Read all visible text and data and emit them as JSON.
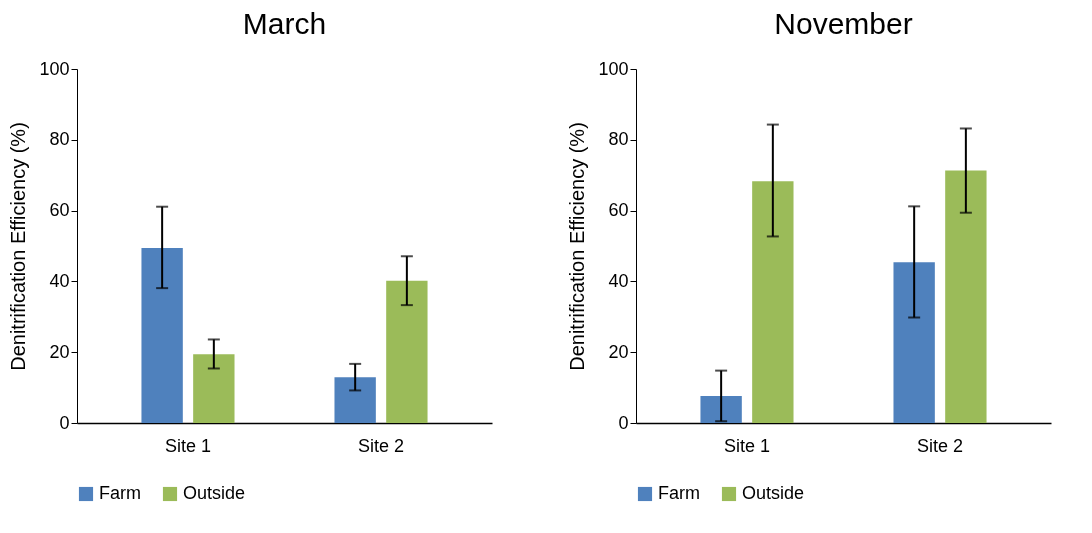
{
  "chart_data": [
    {
      "type": "bar",
      "title": "March",
      "ylabel": "Denitrification Efficiency (%)",
      "categories": [
        "Site 1",
        "Site 2"
      ],
      "series": [
        {
          "name": "Farm",
          "color": "#4f81bd",
          "values": [
            49.4,
            12.9
          ],
          "errors": [
            [
              38.1,
              61.1
            ],
            [
              9.2,
              16.7
            ]
          ]
        },
        {
          "name": "Outside",
          "color": "#9bbb59",
          "values": [
            19.4,
            40.2
          ],
          "errors": [
            [
              15.4,
              23.6
            ],
            [
              33.3,
              47.1
            ]
          ]
        }
      ],
      "ylim": [
        0,
        100
      ],
      "yticks": [
        0,
        20,
        40,
        60,
        80,
        100
      ],
      "grid": false,
      "legend": "bottom"
    },
    {
      "type": "bar",
      "title": "November",
      "ylabel": "Denitrification Efficiency (%)",
      "categories": [
        "Site 1",
        "Site 2"
      ],
      "series": [
        {
          "name": "Farm",
          "color": "#4f81bd",
          "values": [
            7.6,
            45.4
          ],
          "errors": [
            [
              0.5,
              14.8
            ],
            [
              29.8,
              61.2
            ]
          ]
        },
        {
          "name": "Outside",
          "color": "#9bbb59",
          "values": [
            68.3,
            71.3
          ],
          "errors": [
            [
              52.7,
              84.3
            ],
            [
              59.4,
              83.2
            ]
          ]
        }
      ],
      "ylim": [
        0,
        100
      ],
      "yticks": [
        0,
        20,
        40,
        60,
        80,
        100
      ],
      "grid": false,
      "legend": "bottom"
    }
  ]
}
